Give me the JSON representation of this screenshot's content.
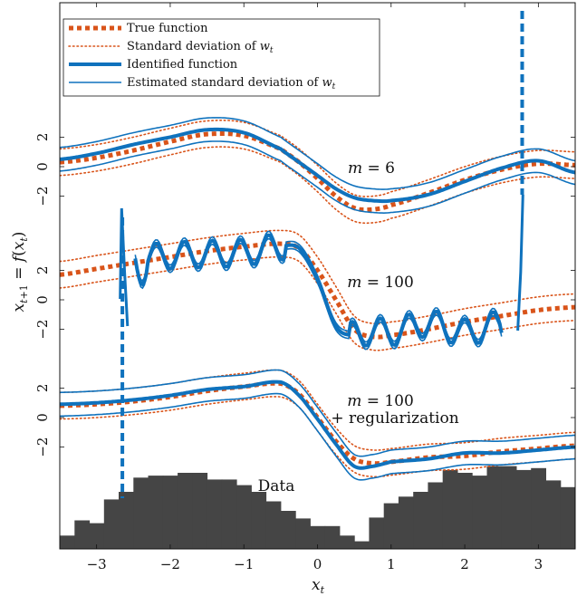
{
  "chart_data": {
    "type": "line",
    "xlabel": "x_t",
    "ylabel": "x_{t+1} = f(x_t)",
    "xlim": [
      -3.5,
      3.5
    ],
    "x_ticks": [
      "−3",
      "−2",
      "−1",
      "0",
      "1",
      "2",
      "3"
    ],
    "y_tick_labels": [
      "2",
      "0",
      "−2"
    ],
    "colors": {
      "true": "#d9541a",
      "identified": "#0f72bd",
      "data": "#454545"
    },
    "legend": {
      "position": "top-left",
      "entries": [
        {
          "label": "True function",
          "style": "thick-dotted",
          "color": "#d9541a"
        },
        {
          "label": "Standard deviation of ",
          "math": "w",
          "math_sub": "t",
          "style": "thin-dotted",
          "color": "#d9541a"
        },
        {
          "label": "Identified function",
          "style": "thick-solid",
          "color": "#0f72bd"
        },
        {
          "label": "Estimated standard deviation of ",
          "math": "w",
          "math_sub": "t",
          "style": "thin-solid",
          "color": "#0f72bd"
        }
      ]
    },
    "panels": [
      {
        "name": "m = 6",
        "label_math": "m",
        "label_value": "6",
        "x": [
          -3.5,
          -3.0,
          -2.5,
          -2.0,
          -1.5,
          -1.0,
          -0.5,
          -0.25,
          0.0,
          0.25,
          0.5,
          0.75,
          1.0,
          1.5,
          2.0,
          2.5,
          3.0,
          3.5
        ],
        "true": [
          0.3,
          0.6,
          1.1,
          1.7,
          2.2,
          2.1,
          1.2,
          0.3,
          -0.8,
          -2.0,
          -2.8,
          -2.9,
          -2.6,
          -1.8,
          -0.9,
          -0.2,
          0.2,
          0.1
        ],
        "true_sd": 0.9,
        "identified": [
          0.5,
          0.9,
          1.5,
          2.0,
          2.5,
          2.3,
          1.2,
          0.3,
          -0.6,
          -1.5,
          -2.1,
          -2.3,
          -2.3,
          -1.9,
          -1.0,
          -0.1,
          0.4,
          -0.4
        ],
        "identified_sd": 0.8
      },
      {
        "name": "m = 100",
        "label_math": "m",
        "label_value": "100",
        "x": [
          -3.5,
          -3.0,
          -2.5,
          -2.0,
          -1.5,
          -1.0,
          -0.5,
          -0.25,
          0.0,
          0.25,
          0.5,
          0.75,
          1.0,
          1.5,
          2.0,
          2.5,
          3.0,
          3.5
        ],
        "true": [
          1.7,
          2.1,
          2.5,
          2.9,
          3.3,
          3.6,
          3.8,
          3.5,
          2.0,
          0.0,
          -2.0,
          -2.5,
          -2.4,
          -2.0,
          -1.5,
          -1.1,
          -0.7,
          -0.5
        ],
        "true_sd": 0.9,
        "identified": [
          null,
          null,
          2.8,
          3.0,
          3.1,
          3.2,
          3.6,
          3.5,
          1.4,
          -1.8,
          -2.4,
          -2.1,
          -2.2,
          -1.6,
          -2.2,
          -1.6,
          null,
          null
        ],
        "identified_sd": 0.25
      },
      {
        "name": "m = 100 + regularization",
        "label_math": "m",
        "label_value": "100",
        "label_extra": "+ regularization",
        "x": [
          -3.5,
          -3.0,
          -2.5,
          -2.0,
          -1.5,
          -1.0,
          -0.5,
          -0.25,
          0.0,
          0.25,
          0.5,
          0.75,
          1.0,
          1.5,
          2.0,
          2.5,
          3.0,
          3.5
        ],
        "true": [
          0.8,
          0.9,
          1.1,
          1.4,
          1.8,
          2.1,
          2.3,
          1.6,
          0.0,
          -1.6,
          -2.8,
          -3.1,
          -3.0,
          -2.7,
          -2.6,
          -2.3,
          -2.1,
          -1.9
        ],
        "true_sd": 0.9,
        "identified": [
          0.9,
          1.0,
          1.2,
          1.5,
          1.9,
          2.1,
          2.4,
          1.5,
          -0.1,
          -1.8,
          -3.3,
          -3.3,
          -3.0,
          -2.8,
          -2.4,
          -2.4,
          -2.2,
          -2.0
        ],
        "identified_sd": 0.8
      }
    ],
    "histogram": {
      "label": "Data",
      "bin_edges_start": -3.5,
      "bin_width": 0.2,
      "counts": [
        0.14,
        0.3,
        0.27,
        0.52,
        0.6,
        0.75,
        0.77,
        0.77,
        0.8,
        0.8,
        0.73,
        0.73,
        0.67,
        0.6,
        0.5,
        0.4,
        0.32,
        0.24,
        0.24,
        0.14,
        0.08,
        0.33,
        0.48,
        0.55,
        0.6,
        0.7,
        0.83,
        0.8,
        0.77,
        0.87,
        0.87,
        0.83,
        0.85,
        0.72,
        0.65,
        0.57,
        0.32,
        0.6,
        0.52,
        0.3,
        0.17
      ]
    },
    "dashed_verticals_x": [
      -2.65,
      2.78
    ]
  }
}
